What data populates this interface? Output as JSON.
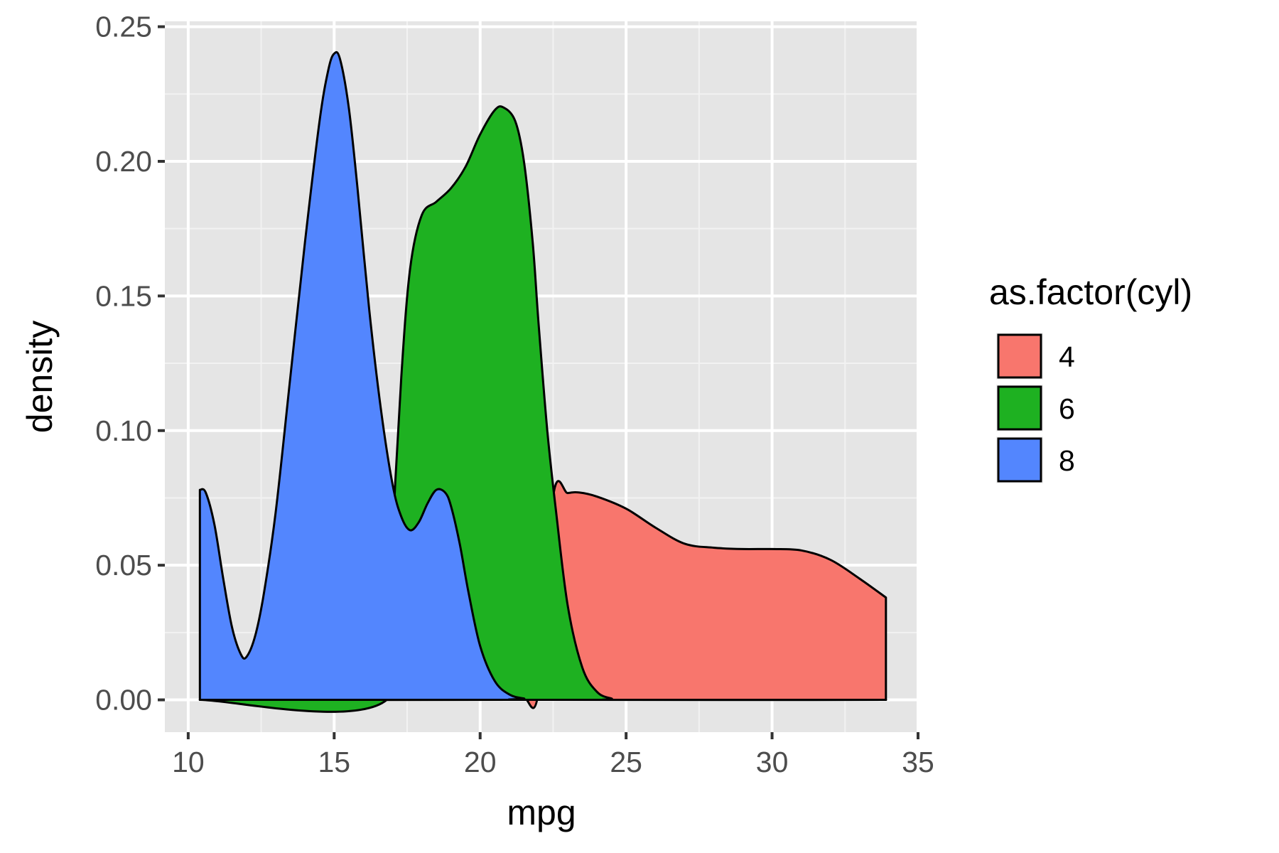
{
  "chart_data": {
    "type": "area",
    "subtype": "density",
    "title": "",
    "xlabel": "mpg",
    "ylabel": "density",
    "xlim": [
      9.2,
      35.0
    ],
    "ylim": [
      -0.012,
      0.252
    ],
    "x_ticks": [
      10,
      15,
      20,
      25,
      30,
      35
    ],
    "x_tick_labels": [
      "10",
      "15",
      "20",
      "25",
      "30",
      "35"
    ],
    "y_ticks": [
      0.0,
      0.05,
      0.1,
      0.15,
      0.2,
      0.25
    ],
    "y_tick_labels": [
      "0.00",
      "0.05",
      "0.10",
      "0.15",
      "0.20",
      "0.25"
    ],
    "grid": true,
    "legend": {
      "title": "as.factor(cyl)",
      "position": "right"
    },
    "series": [
      {
        "name": "4",
        "color": "#F8766D",
        "x": [
          10.4,
          21.0,
          21.5,
          22.0,
          22.5,
          23.0,
          23.4,
          24.0,
          25.0,
          26.0,
          27.0,
          28.0,
          29.0,
          30.0,
          31.0,
          32.0,
          33.0,
          33.9
        ],
        "y": [
          0.0,
          0.0,
          0.0008,
          0.003,
          0.0755,
          0.0768,
          0.077,
          0.0755,
          0.071,
          0.064,
          0.058,
          0.0565,
          0.056,
          0.056,
          0.0555,
          0.052,
          0.045,
          0.038
        ]
      },
      {
        "name": "6",
        "color": "#1EB121",
        "x": [
          10.4,
          16.8,
          17.0,
          17.3,
          17.6,
          18.0,
          18.5,
          19.0,
          19.5,
          20.0,
          20.5,
          20.8,
          21.2,
          21.5,
          21.8,
          22.0,
          22.3,
          22.6,
          23.0,
          23.5,
          24.0,
          24.5,
          25.0,
          33.9
        ],
        "y": [
          0.0,
          0.0,
          0.06,
          0.12,
          0.16,
          0.18,
          0.185,
          0.19,
          0.198,
          0.21,
          0.219,
          0.22,
          0.215,
          0.2,
          0.17,
          0.14,
          0.1,
          0.07,
          0.035,
          0.012,
          0.003,
          0.0005,
          0.0,
          0.0
        ]
      },
      {
        "name": "8",
        "color": "#5386FE",
        "x": [
          10.4,
          10.6,
          10.9,
          11.2,
          11.5,
          11.8,
          12.0,
          12.3,
          12.6,
          13.0,
          13.5,
          14.0,
          14.5,
          14.8,
          15.0,
          15.2,
          15.5,
          15.8,
          16.2,
          16.6,
          17.0,
          17.3,
          17.6,
          17.9,
          18.2,
          18.5,
          18.8,
          19.0,
          19.3,
          19.6,
          20.0,
          20.5,
          21.0,
          21.5,
          22.0,
          33.9
        ],
        "y": [
          0.078,
          0.077,
          0.065,
          0.045,
          0.027,
          0.017,
          0.016,
          0.024,
          0.04,
          0.07,
          0.12,
          0.17,
          0.215,
          0.234,
          0.24,
          0.238,
          0.22,
          0.19,
          0.145,
          0.108,
          0.08,
          0.068,
          0.063,
          0.066,
          0.073,
          0.078,
          0.077,
          0.072,
          0.058,
          0.04,
          0.02,
          0.007,
          0.002,
          0.0005,
          0.0,
          0.0
        ]
      }
    ]
  }
}
